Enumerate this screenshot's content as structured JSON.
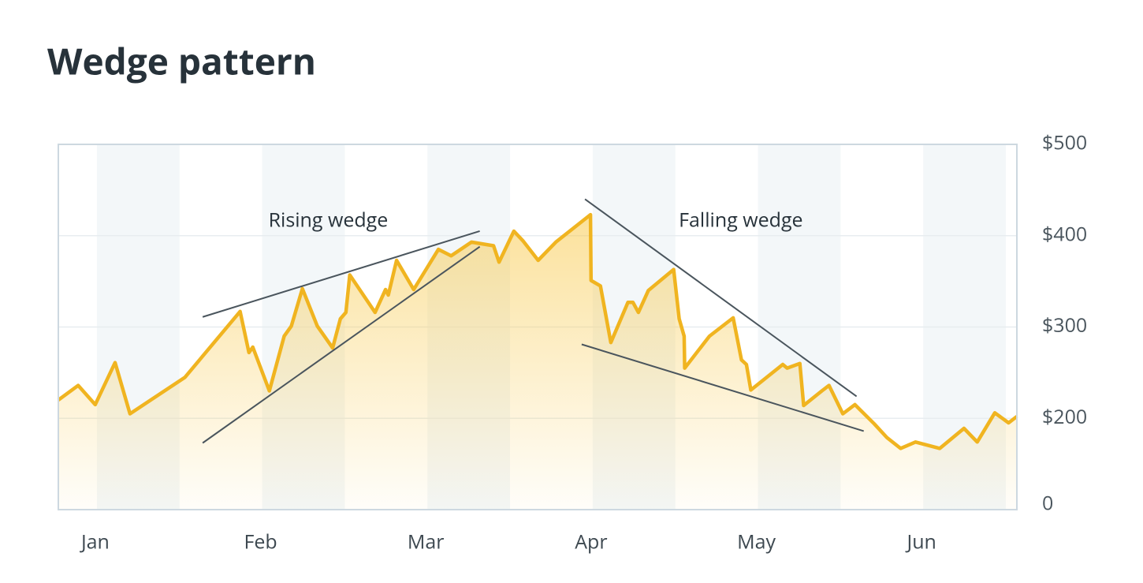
{
  "chart_data": {
    "type": "area",
    "title": "Wedge pattern",
    "series": [
      {
        "color": "#f0b420",
        "x": [
          0,
          3.6,
          6.7,
          10.3,
          13,
          23,
          33,
          34.6,
          35.3,
          38.3,
          41,
          42.3,
          44.3,
          47,
          49.8,
          51.2,
          52.2,
          52.9,
          57.5,
          59.4,
          59.9,
          61.4,
          64.5,
          69,
          71.3,
          75,
          79,
          80,
          82.7,
          84.4,
          87.1,
          90.3,
          96.6,
          96.7,
          98.4,
          100.3,
          103.4,
          104.3,
          105.3,
          107.1,
          111.7,
          112.7,
          113.6,
          113.7,
          118.2,
          122.5,
          124,
          124.9,
          125.7,
          131.5,
          132.3,
          134.6,
          135.3,
          138.6,
          139.9,
          142.4,
          144.6,
          148.1,
          150.4,
          152.9,
          155.6,
          160,
          164.4,
          166.8,
          170,
          172.5,
          174
        ],
        "values": [
          220,
          236,
          215,
          261,
          205,
          245,
          317,
          272,
          278,
          230,
          290,
          301,
          342,
          301,
          277,
          309,
          316,
          357,
          316,
          341,
          335,
          373,
          341,
          385,
          378,
          393,
          389,
          371,
          405,
          394,
          373,
          393,
          423,
          351,
          345,
          283,
          327,
          327,
          316,
          340,
          363,
          309,
          290,
          255,
          290,
          310,
          264,
          259,
          231,
          259,
          255,
          260,
          214,
          230,
          236,
          205,
          215,
          194,
          179,
          167,
          174,
          167,
          189,
          174,
          206,
          195,
          202
        ]
      }
    ],
    "xlim": [
      0,
      174
    ],
    "xticks": [
      {
        "value": 7,
        "label": "Jan"
      },
      {
        "value": 37,
        "label": "Feb"
      },
      {
        "value": 67,
        "label": "Mar"
      },
      {
        "value": 97,
        "label": "Apr"
      },
      {
        "value": 127,
        "label": "May"
      },
      {
        "value": 157,
        "label": "Jun"
      }
    ],
    "ylim": [
      100,
      500
    ],
    "yticks": [
      {
        "value": 200,
        "label": "$200"
      },
      {
        "value": 300,
        "label": "$300"
      },
      {
        "value": 400,
        "label": "$400"
      },
      {
        "value": 500,
        "label": "$500"
      }
    ],
    "y_floor_label": "0",
    "grid": true,
    "annotations": [
      {
        "text": "Rising wedge",
        "x": 49,
        "y": 405,
        "lines": [
          {
            "x": [
              26.2,
              76.5
            ],
            "y": [
              311,
              405
            ]
          },
          {
            "x": [
              26.2,
              76.5
            ],
            "y": [
              173,
              388
            ]
          }
        ]
      },
      {
        "text": "Falling wedge",
        "x": 123.9,
        "y": 405,
        "lines": [
          {
            "x": [
              95.6,
              144.9
            ],
            "y": [
              440,
              224
            ]
          },
          {
            "x": [
              95,
              146.2
            ],
            "y": [
              281,
              186
            ]
          }
        ]
      }
    ]
  }
}
